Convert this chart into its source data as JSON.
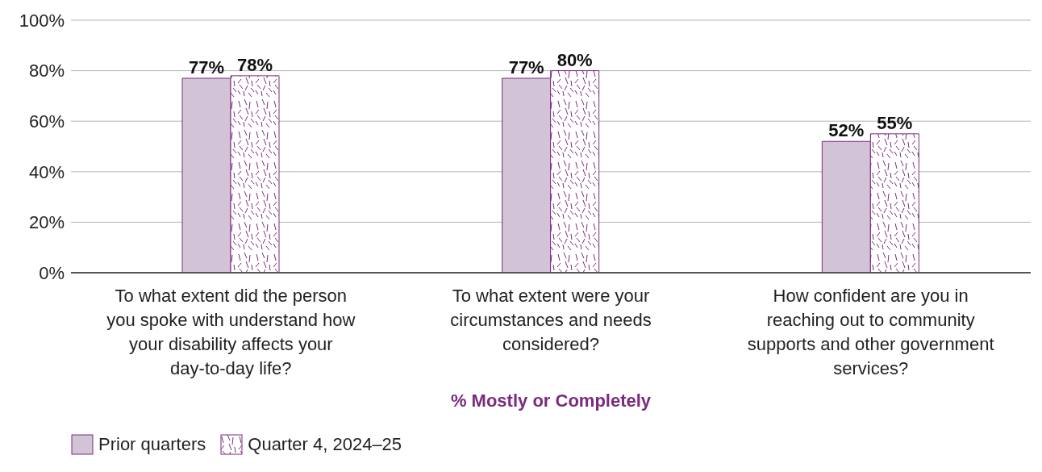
{
  "chart_data": {
    "type": "bar",
    "xlabel": "% Mostly or Completely",
    "categories": [
      "To what extent did the person you spoke with understand how your disability affects your day-to-day life?",
      "To what extent were your circumstances and needs considered?",
      "How confident are you in reaching out to community supports and other government services?"
    ],
    "series": [
      {
        "name": "Prior quarters",
        "color": "#d3c3d6",
        "values": [
          77,
          77,
          52
        ],
        "value_labels": [
          "77%",
          "77%",
          "52%"
        ]
      },
      {
        "name": "Quarter 4, 2024–25",
        "color": "#7b2a7e",
        "values": [
          78,
          80,
          55
        ],
        "value_labels": [
          "78%",
          "80%",
          "55%"
        ]
      }
    ],
    "ylim": [
      0,
      100
    ],
    "yticks": [
      {
        "value": 0,
        "label": "0%"
      },
      {
        "value": 20,
        "label": "20%"
      },
      {
        "value": 40,
        "label": "40%"
      },
      {
        "value": 60,
        "label": "60%"
      },
      {
        "value": 80,
        "label": "80%"
      },
      {
        "value": 100,
        "label": "100%"
      }
    ],
    "grid": "y",
    "legend": "bottom left"
  }
}
